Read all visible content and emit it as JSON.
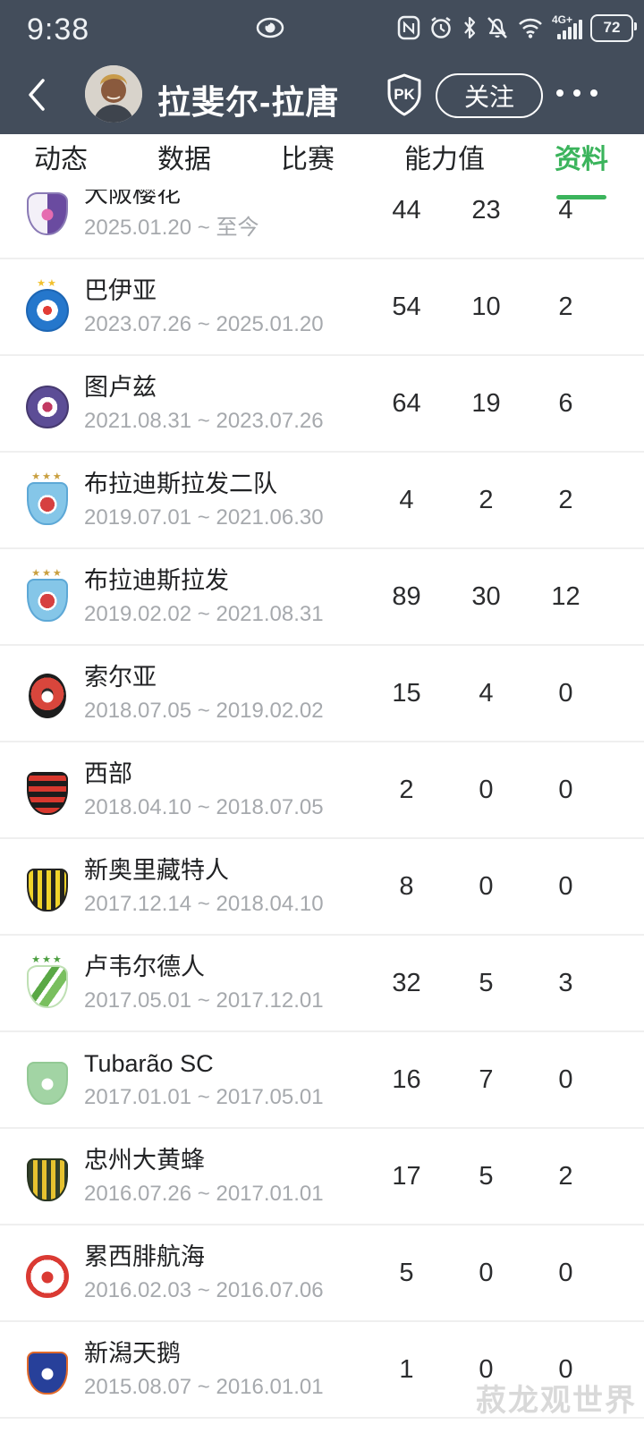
{
  "status_bar": {
    "time": "9:38",
    "network": "4G+",
    "battery": "72"
  },
  "header": {
    "title": "拉斐尔-拉唐",
    "follow": "关注",
    "pk": "PK"
  },
  "tabs": [
    {
      "label": "动态",
      "active": false
    },
    {
      "label": "数据",
      "active": false
    },
    {
      "label": "比赛",
      "active": false
    },
    {
      "label": "能力值",
      "active": false
    },
    {
      "label": "资料",
      "active": true
    }
  ],
  "colors": {
    "header_bg": "#434d5b",
    "accent_green": "#3bb45c",
    "date_gray": "#a6a9ad"
  },
  "watermark": "菽龙观世界",
  "rows": [
    {
      "name": "大阪樱花",
      "period": "2025.01.20 ~ 至今",
      "stats": [
        44,
        23,
        4
      ],
      "logo": {
        "shape": "crest",
        "css": "linear-gradient(90deg,#f3f0f8 50%,#6a4ba0 50%)",
        "border": "#8a7ab5",
        "stars": 0,
        "star_color": "",
        "emblem_color": "#e56cb0"
      }
    },
    {
      "name": "巴伊亚",
      "period": "2023.07.26 ~ 2025.01.20",
      "stats": [
        54,
        10,
        2
      ],
      "logo": {
        "shape": "circle",
        "css": "radial-gradient(circle,#e23c36 0 16%,#ffffff 16% 38%,#2577cc 38%)",
        "border": "#1d66b4",
        "stars": 2,
        "star_color": "#f2c12e",
        "emblem_color": ""
      }
    },
    {
      "name": "图卢兹",
      "period": "2021.08.31 ~ 2023.07.26",
      "stats": [
        64,
        19,
        6
      ],
      "logo": {
        "shape": "circle",
        "css": "radial-gradient(circle,#c23a62 0 18%,#ffffff 18% 36%,#5c4d96 36%)",
        "border": "#46396f",
        "stars": 0,
        "star_color": "",
        "emblem_color": ""
      }
    },
    {
      "name": "布拉迪斯拉发二队",
      "period": "2019.07.01 ~ 2021.06.30",
      "stats": [
        4,
        2,
        2
      ],
      "logo": {
        "shape": "shield",
        "css": "radial-gradient(circle at 50% 52%,#d64040 0 26%,#ffffff 26% 34%,#85c6e8 34%)",
        "border": "#5da8d6",
        "stars": 3,
        "star_color": "#c99f3f",
        "emblem_color": ""
      }
    },
    {
      "name": "布拉迪斯拉发",
      "period": "2019.02.02 ~ 2021.08.31",
      "stats": [
        89,
        30,
        12
      ],
      "logo": {
        "shape": "shield",
        "css": "radial-gradient(circle at 50% 52%,#d64040 0 26%,#ffffff 26% 34%,#85c6e8 34%)",
        "border": "#5da8d6",
        "stars": 3,
        "star_color": "#c99f3f",
        "emblem_color": ""
      }
    },
    {
      "name": "索尔亚",
      "period": "2018.07.05 ~ 2019.02.02",
      "stats": [
        15,
        4,
        0
      ],
      "logo": {
        "shape": "oval",
        "css": "radial-gradient(circle at 50% 45%,#2a2a2a 0 20%,#d8463c 20% 58%,#1d1d1d 58%)",
        "border": "#1d1d1d",
        "stars": 0,
        "star_color": "",
        "emblem_color": "#ffffff"
      }
    },
    {
      "name": "西部",
      "period": "2018.04.10 ~ 2018.07.05",
      "stats": [
        2,
        0,
        0
      ],
      "logo": {
        "shape": "shield",
        "css": "repeating-linear-gradient(0deg,#d8382e 0 6px,#1c1c1c 6px 12px)",
        "border": "#1c1c1c",
        "stars": 0,
        "star_color": "",
        "emblem_color": ""
      }
    },
    {
      "name": "新奥里藏特人",
      "period": "2017.12.14 ~ 2018.04.10",
      "stats": [
        8,
        0,
        0
      ],
      "logo": {
        "shape": "shield",
        "css": "repeating-linear-gradient(90deg,#f0d32a 0 5px,#23231f 5px 10px)",
        "border": "#23231f",
        "stars": 0,
        "star_color": "",
        "emblem_color": ""
      }
    },
    {
      "name": "卢韦尔德人",
      "period": "2017.05.01 ~ 2017.12.01",
      "stats": [
        32,
        5,
        3
      ],
      "logo": {
        "shape": "crest",
        "css": "linear-gradient(125deg,#ffffff 35%,#5aa845 35% 48%,#ffffff 48% 56%,#79bf5e 56% 72%,#ffffff 72%)",
        "border": "#bfe0b4",
        "stars": 3,
        "star_color": "#4a9e3e",
        "emblem_color": ""
      }
    },
    {
      "name": "Tubarão SC",
      "period": "2017.01.01 ~ 2017.05.01",
      "stats": [
        16,
        7,
        0
      ],
      "logo": {
        "shape": "shield",
        "css": "#a2d4a4",
        "border": "#93c995",
        "stars": 0,
        "star_color": "",
        "emblem_color": "#ffffff"
      }
    },
    {
      "name": "忠州大黄蜂",
      "period": "2016.07.26 ~ 2017.01.01",
      "stats": [
        17,
        5,
        2
      ],
      "logo": {
        "shape": "shield",
        "css": "repeating-linear-gradient(90deg,#32402a 0 5px,#e6c22f 5px 10px)",
        "border": "#27331f",
        "stars": 0,
        "star_color": "",
        "emblem_color": ""
      }
    },
    {
      "name": "累西腓航海",
      "period": "2016.02.03 ~ 2016.07.06",
      "stats": [
        5,
        0,
        0
      ],
      "logo": {
        "shape": "circle",
        "css": "radial-gradient(circle,#ffffff 0 60%,#da3a33 60%)",
        "border": "#da3a33",
        "stars": 0,
        "star_color": "",
        "emblem_color": "#da3a33"
      }
    },
    {
      "name": "新潟天鹅",
      "period": "2015.08.07 ~ 2016.01.01",
      "stats": [
        1,
        0,
        0
      ],
      "logo": {
        "shape": "shield",
        "css": "#27409a",
        "border": "#e0692a",
        "stars": 0,
        "star_color": "",
        "emblem_color": "#ffffff"
      }
    }
  ]
}
